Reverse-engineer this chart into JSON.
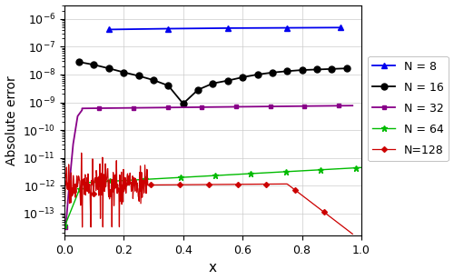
{
  "xlabel": "x",
  "ylabel": "Absolute error",
  "xlim": [
    0.0,
    1.0
  ],
  "series": [
    {
      "label": "N = 8",
      "color": "#0000EE",
      "marker": "^",
      "markersize": 5,
      "linewidth": 1.3
    },
    {
      "label": "N = 16",
      "color": "#000000",
      "marker": "o",
      "markersize": 5,
      "linewidth": 1.3
    },
    {
      "label": "N = 32",
      "color": "#880088",
      "marker": "s",
      "markersize": 3.5,
      "linewidth": 1.3
    },
    {
      "label": "N = 64",
      "color": "#00BB00",
      "marker": "*",
      "markersize": 5,
      "linewidth": 1.0
    },
    {
      "label": "N=128",
      "color": "#CC0000",
      "marker": "D",
      "markersize": 3,
      "linewidth": 0.9
    }
  ],
  "grid_color": "#CCCCCC",
  "background_color": "#FFFFFF",
  "ylim_low": -13.8,
  "ylim_high": -5.5
}
